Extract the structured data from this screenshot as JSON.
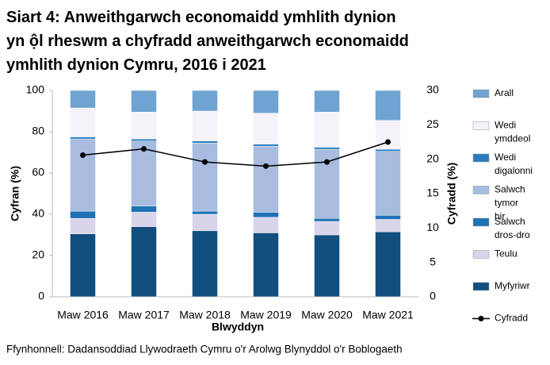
{
  "chart_data": {
    "type": "bar",
    "stacked": true,
    "title": [
      "Siart 4: Anweithgarwch economaidd ymhlith dynion",
      "yn ộl rheswm a chyfradd anweithgarwch economaidd",
      "ymhlith dynion Cymru, 2016 i 2021"
    ],
    "x_label": "Blwyddyn",
    "y_label": "Cyfran (%)",
    "y2_label": "Cyfradd (%)",
    "source": "Ffynhonnell: Dadansoddiad Llywodraeth Cymru o'r Arolwg Blynyddol o'r Boblogaeth",
    "categories": [
      "Maw 2016",
      "Maw 2017",
      "Maw 2018",
      "Maw 2019",
      "Maw 2020",
      "Maw 2021"
    ],
    "series": [
      {
        "name": "Myfyriwr",
        "color": "#124f7e",
        "values": [
          30.5,
          34,
          32,
          31,
          30,
          31.5
        ]
      },
      {
        "name": "Teulu",
        "color": "#d8d4ea",
        "values": [
          7.5,
          7,
          8,
          7.5,
          6.5,
          6
        ]
      },
      {
        "name": "Salwch dros-dro",
        "color": "#1f72b4",
        "values": [
          3.5,
          3,
          1.5,
          2.5,
          1.5,
          2
        ]
      },
      {
        "name": "Salwch tymor hir",
        "color": "#a7bcdf",
        "values": [
          35,
          31.5,
          33,
          32,
          33.5,
          31
        ]
      },
      {
        "name": "Wedi digalonni",
        "color": "#2a7cbc",
        "values": [
          1,
          1,
          1,
          1,
          1,
          1
        ]
      },
      {
        "name": "Wedi ymddeol",
        "color": "#f5f2fa",
        "values": [
          14,
          13,
          14.5,
          15,
          17,
          14
        ]
      },
      {
        "name": "Arall",
        "color": "#6fa4d2",
        "values": [
          8.5,
          10.5,
          10,
          11,
          10.5,
          14.5
        ]
      },
      {
        "name": "Cyfradd",
        "type": "line",
        "axis": "y2",
        "color": "#000000",
        "values": [
          20.6,
          21.5,
          19.6,
          19,
          19.6,
          22.5
        ]
      }
    ],
    "ylim": [
      0,
      100
    ],
    "yticks": [
      0,
      20,
      40,
      60,
      80,
      100
    ],
    "y2lim": [
      0,
      30
    ],
    "y2ticks": [
      0,
      5,
      10,
      15,
      20,
      25,
      30
    ],
    "legend": "right"
  }
}
